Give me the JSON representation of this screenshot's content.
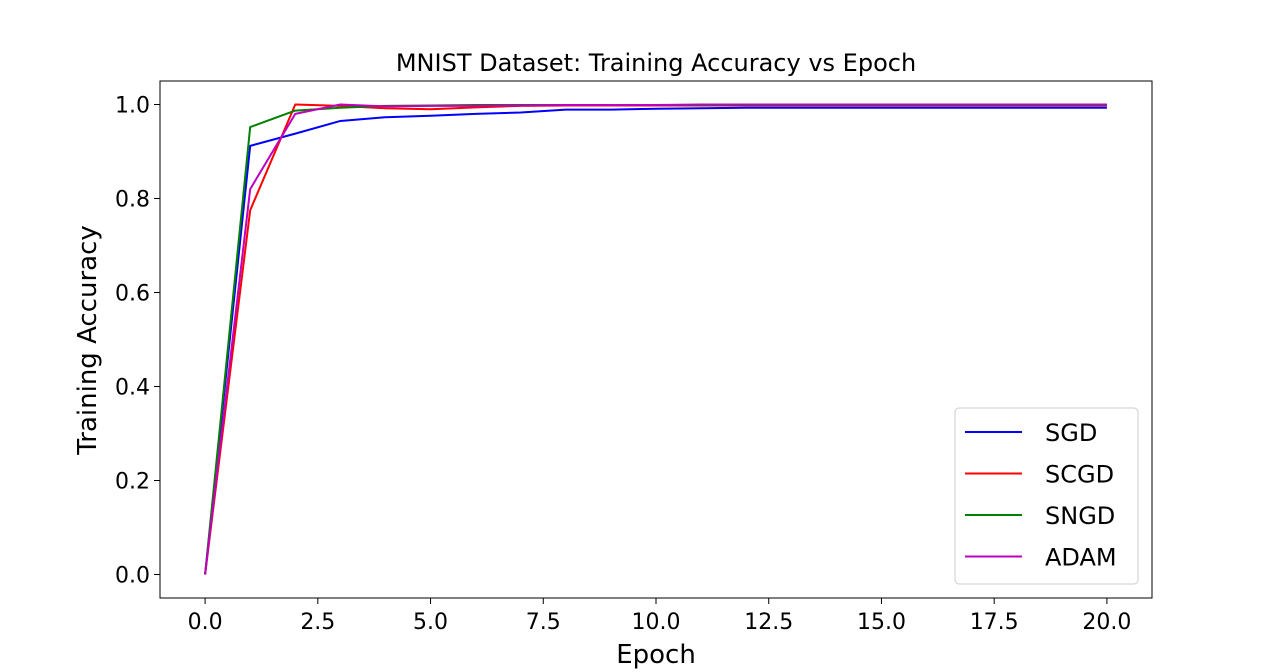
{
  "chart_data": {
    "type": "line",
    "title": "MNIST Dataset:  Training Accuracy vs Epoch",
    "xlabel": "Epoch",
    "ylabel": "Training Accuracy",
    "xlim": [
      -1,
      21
    ],
    "ylim": [
      -0.05,
      1.05
    ],
    "xticks": [
      0,
      2.5,
      5,
      7.5,
      10,
      12.5,
      15,
      17.5,
      20
    ],
    "xtick_labels": [
      "0.0",
      "2.5",
      "5.0",
      "7.5",
      "10.0",
      "12.5",
      "15.0",
      "17.5",
      "20.0"
    ],
    "yticks": [
      0,
      0.2,
      0.4,
      0.6,
      0.8,
      1.0
    ],
    "ytick_labels": [
      "0.0",
      "0.2",
      "0.4",
      "0.6",
      "0.8",
      "1.0"
    ],
    "grid": false,
    "legend_position": "lower-right",
    "x": [
      0,
      1,
      2,
      3,
      4,
      5,
      6,
      7,
      8,
      9,
      10,
      11,
      12,
      13,
      14,
      15,
      16,
      17,
      18,
      19,
      20
    ],
    "series": [
      {
        "name": "SGD",
        "color": "#0000ff",
        "values": [
          0.0,
          0.912,
          0.938,
          0.965,
          0.973,
          0.976,
          0.98,
          0.983,
          0.989,
          0.989,
          0.991,
          0.992,
          0.993,
          0.993,
          0.993,
          0.993,
          0.993,
          0.993,
          0.993,
          0.993,
          0.993
        ]
      },
      {
        "name": "SCGD",
        "color": "#ff0000",
        "values": [
          0.0,
          0.775,
          1.0,
          0.997,
          0.992,
          0.99,
          0.994,
          0.997,
          0.998,
          0.998,
          0.998,
          0.998,
          0.998,
          0.998,
          0.998,
          0.998,
          0.998,
          0.998,
          0.998,
          0.998,
          0.998
        ]
      },
      {
        "name": "SNGD",
        "color": "#008000",
        "values": [
          0.0,
          0.952,
          0.987,
          0.993,
          0.997,
          0.998,
          0.999,
          0.999,
          0.999,
          0.999,
          0.999,
          0.999,
          0.999,
          0.999,
          0.999,
          0.999,
          0.999,
          0.999,
          0.999,
          0.999,
          0.999
        ]
      },
      {
        "name": "ADAM",
        "color": "#bf00bf",
        "values": [
          0.0,
          0.82,
          0.98,
          1.0,
          0.996,
          0.997,
          0.997,
          0.998,
          0.999,
          0.999,
          0.999,
          1.0,
          1.0,
          1.0,
          1.0,
          1.0,
          1.0,
          1.0,
          1.0,
          1.0,
          1.0
        ]
      }
    ]
  }
}
